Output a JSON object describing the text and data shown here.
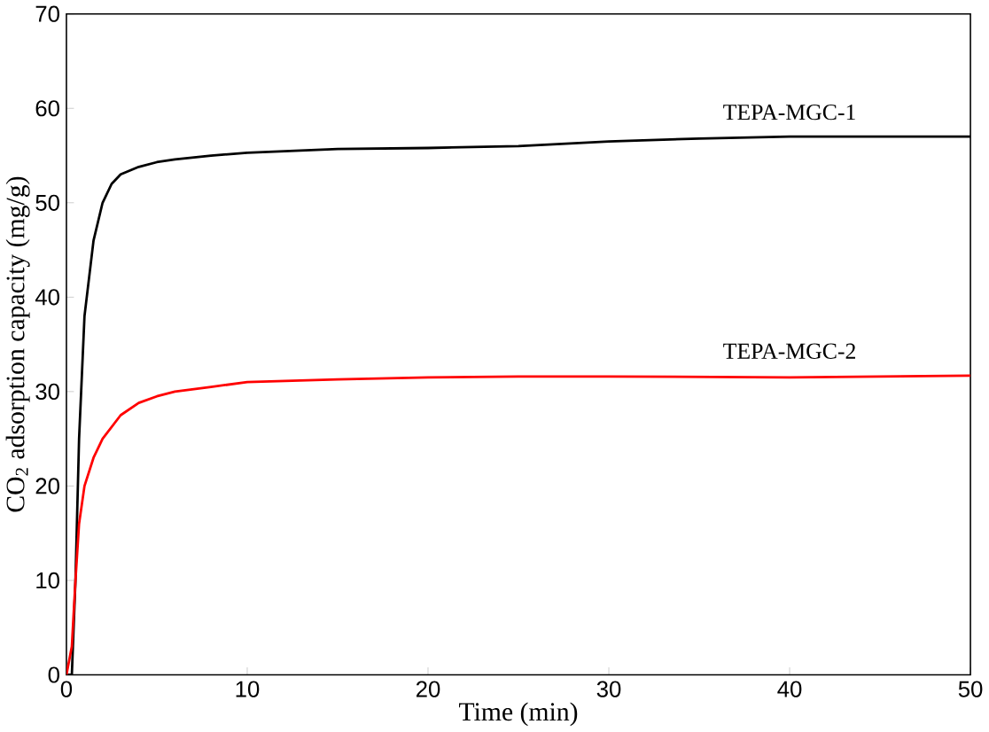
{
  "chart_data": {
    "type": "line",
    "xlabel": "Time (min)",
    "ylabel": "CO$_{2}$ adsorption capacity (mg/g)",
    "xlim": [
      0,
      50
    ],
    "ylim": [
      0,
      70
    ],
    "xticks": [
      0,
      10,
      20,
      30,
      40,
      50
    ],
    "yticks": [
      0,
      10,
      20,
      30,
      40,
      50,
      60,
      70
    ],
    "grid": false,
    "marker": "none",
    "line_style": "solid",
    "series": [
      {
        "name": "TEPA-MGC-1",
        "color": "#000000",
        "x": [
          0,
          0.3,
          0.5,
          0.7,
          1,
          1.5,
          2,
          2.5,
          3,
          4,
          5,
          6,
          8,
          10,
          15,
          20,
          25,
          30,
          35,
          40,
          45,
          50
        ],
        "values": [
          0,
          0,
          10,
          25,
          38,
          46,
          50,
          52,
          53,
          53.8,
          54.3,
          54.6,
          55,
          55.3,
          55.7,
          55.8,
          56,
          56.5,
          56.8,
          57,
          57,
          57
        ]
      },
      {
        "name": "TEPA-MGC-2",
        "color": "#ff0000",
        "x": [
          0,
          0.3,
          0.5,
          0.7,
          1,
          1.5,
          2,
          3,
          4,
          5,
          6,
          8,
          10,
          15,
          20,
          25,
          30,
          40,
          50
        ],
        "values": [
          0,
          3,
          10,
          16,
          20,
          23,
          25,
          27.5,
          28.8,
          29.5,
          30,
          30.5,
          31,
          31.3,
          31.5,
          31.6,
          31.6,
          31.5,
          31.7
        ]
      }
    ]
  }
}
